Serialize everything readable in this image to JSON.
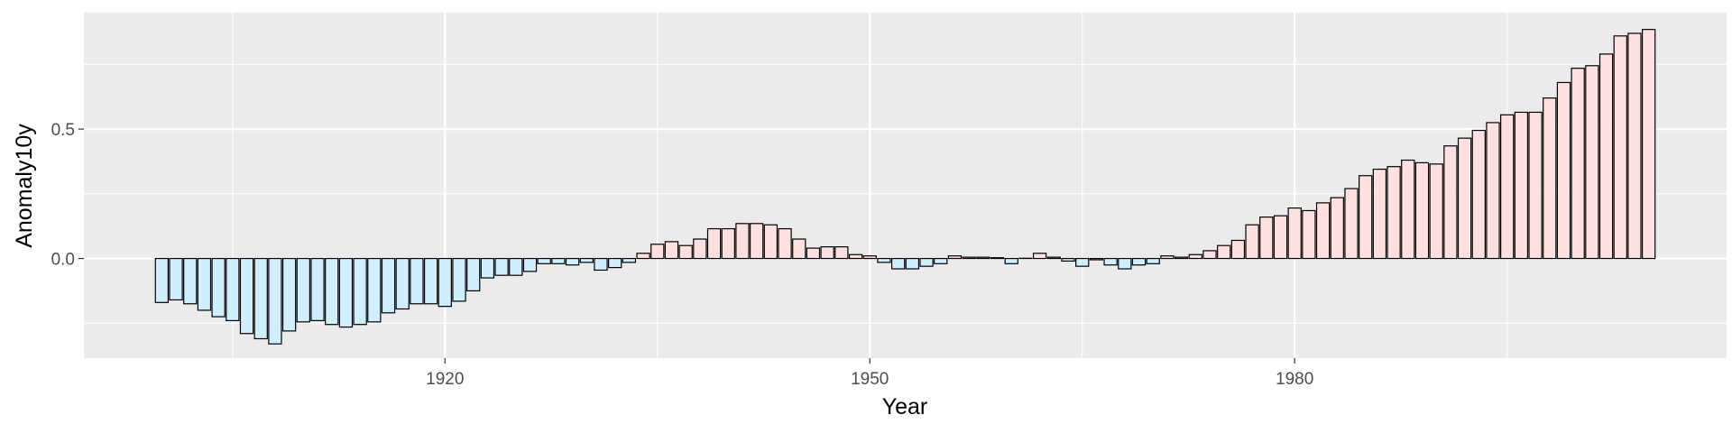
{
  "chart_data": {
    "type": "bar",
    "xlabel": "Year",
    "ylabel": "Anomaly10y",
    "x": [
      1900,
      1901,
      1902,
      1903,
      1904,
      1905,
      1906,
      1907,
      1908,
      1909,
      1910,
      1911,
      1912,
      1913,
      1914,
      1915,
      1916,
      1917,
      1918,
      1919,
      1920,
      1921,
      1922,
      1923,
      1924,
      1925,
      1926,
      1927,
      1928,
      1929,
      1930,
      1931,
      1932,
      1933,
      1934,
      1935,
      1936,
      1937,
      1938,
      1939,
      1940,
      1941,
      1942,
      1943,
      1944,
      1945,
      1946,
      1947,
      1948,
      1949,
      1950,
      1951,
      1952,
      1953,
      1954,
      1955,
      1956,
      1957,
      1958,
      1959,
      1960,
      1961,
      1962,
      1963,
      1964,
      1965,
      1966,
      1967,
      1968,
      1969,
      1970,
      1971,
      1972,
      1973,
      1974,
      1975,
      1976,
      1977,
      1978,
      1979,
      1980,
      1981,
      1982,
      1983,
      1984,
      1985,
      1986,
      1987,
      1988,
      1989,
      1990,
      1991,
      1992,
      1993,
      1994,
      1995,
      1996,
      1997,
      1998,
      1999,
      2000,
      2001,
      2002,
      2003,
      2004,
      2005
    ],
    "values": [
      -0.17,
      -0.16,
      -0.175,
      -0.2,
      -0.225,
      -0.24,
      -0.29,
      -0.31,
      -0.33,
      -0.28,
      -0.245,
      -0.24,
      -0.255,
      -0.265,
      -0.255,
      -0.245,
      -0.21,
      -0.195,
      -0.175,
      -0.175,
      -0.185,
      -0.165,
      -0.125,
      -0.075,
      -0.065,
      -0.065,
      -0.05,
      -0.02,
      -0.02,
      -0.025,
      -0.015,
      -0.045,
      -0.035,
      -0.015,
      0.02,
      0.055,
      0.065,
      0.05,
      0.075,
      0.115,
      0.115,
      0.135,
      0.135,
      0.13,
      0.115,
      0.075,
      0.04,
      0.045,
      0.045,
      0.015,
      0.01,
      -0.015,
      -0.04,
      -0.04,
      -0.03,
      -0.02,
      0.01,
      0.005,
      0.005,
      0.003,
      -0.02,
      0.001,
      0.02,
      0.005,
      -0.01,
      -0.03,
      -0.005,
      -0.025,
      -0.04,
      -0.025,
      -0.02,
      0.01,
      0.005,
      0.015,
      0.03,
      0.05,
      0.07,
      0.13,
      0.16,
      0.165,
      0.195,
      0.185,
      0.215,
      0.235,
      0.27,
      0.32,
      0.345,
      0.355,
      0.38,
      0.37,
      0.365,
      0.435,
      0.465,
      0.495,
      0.525,
      0.555,
      0.565,
      0.565,
      0.62,
      0.68,
      0.735,
      0.745,
      0.79,
      0.86,
      0.87,
      0.885
    ],
    "xticks": [
      1920,
      1950,
      1980
    ],
    "yticks": [
      0.0,
      0.5
    ],
    "ytick_labels": [
      "0.0",
      "0.5"
    ],
    "xlim": [
      1894.5,
      2010.5
    ],
    "ylim": [
      -0.385,
      0.95
    ],
    "grid": true,
    "colors": {
      "panel": "#ebebeb",
      "grid": "#ffffff",
      "positive_fill": "#ffe0e0",
      "negative_fill": "#cfeeff",
      "bar_outline": "#000000"
    }
  }
}
